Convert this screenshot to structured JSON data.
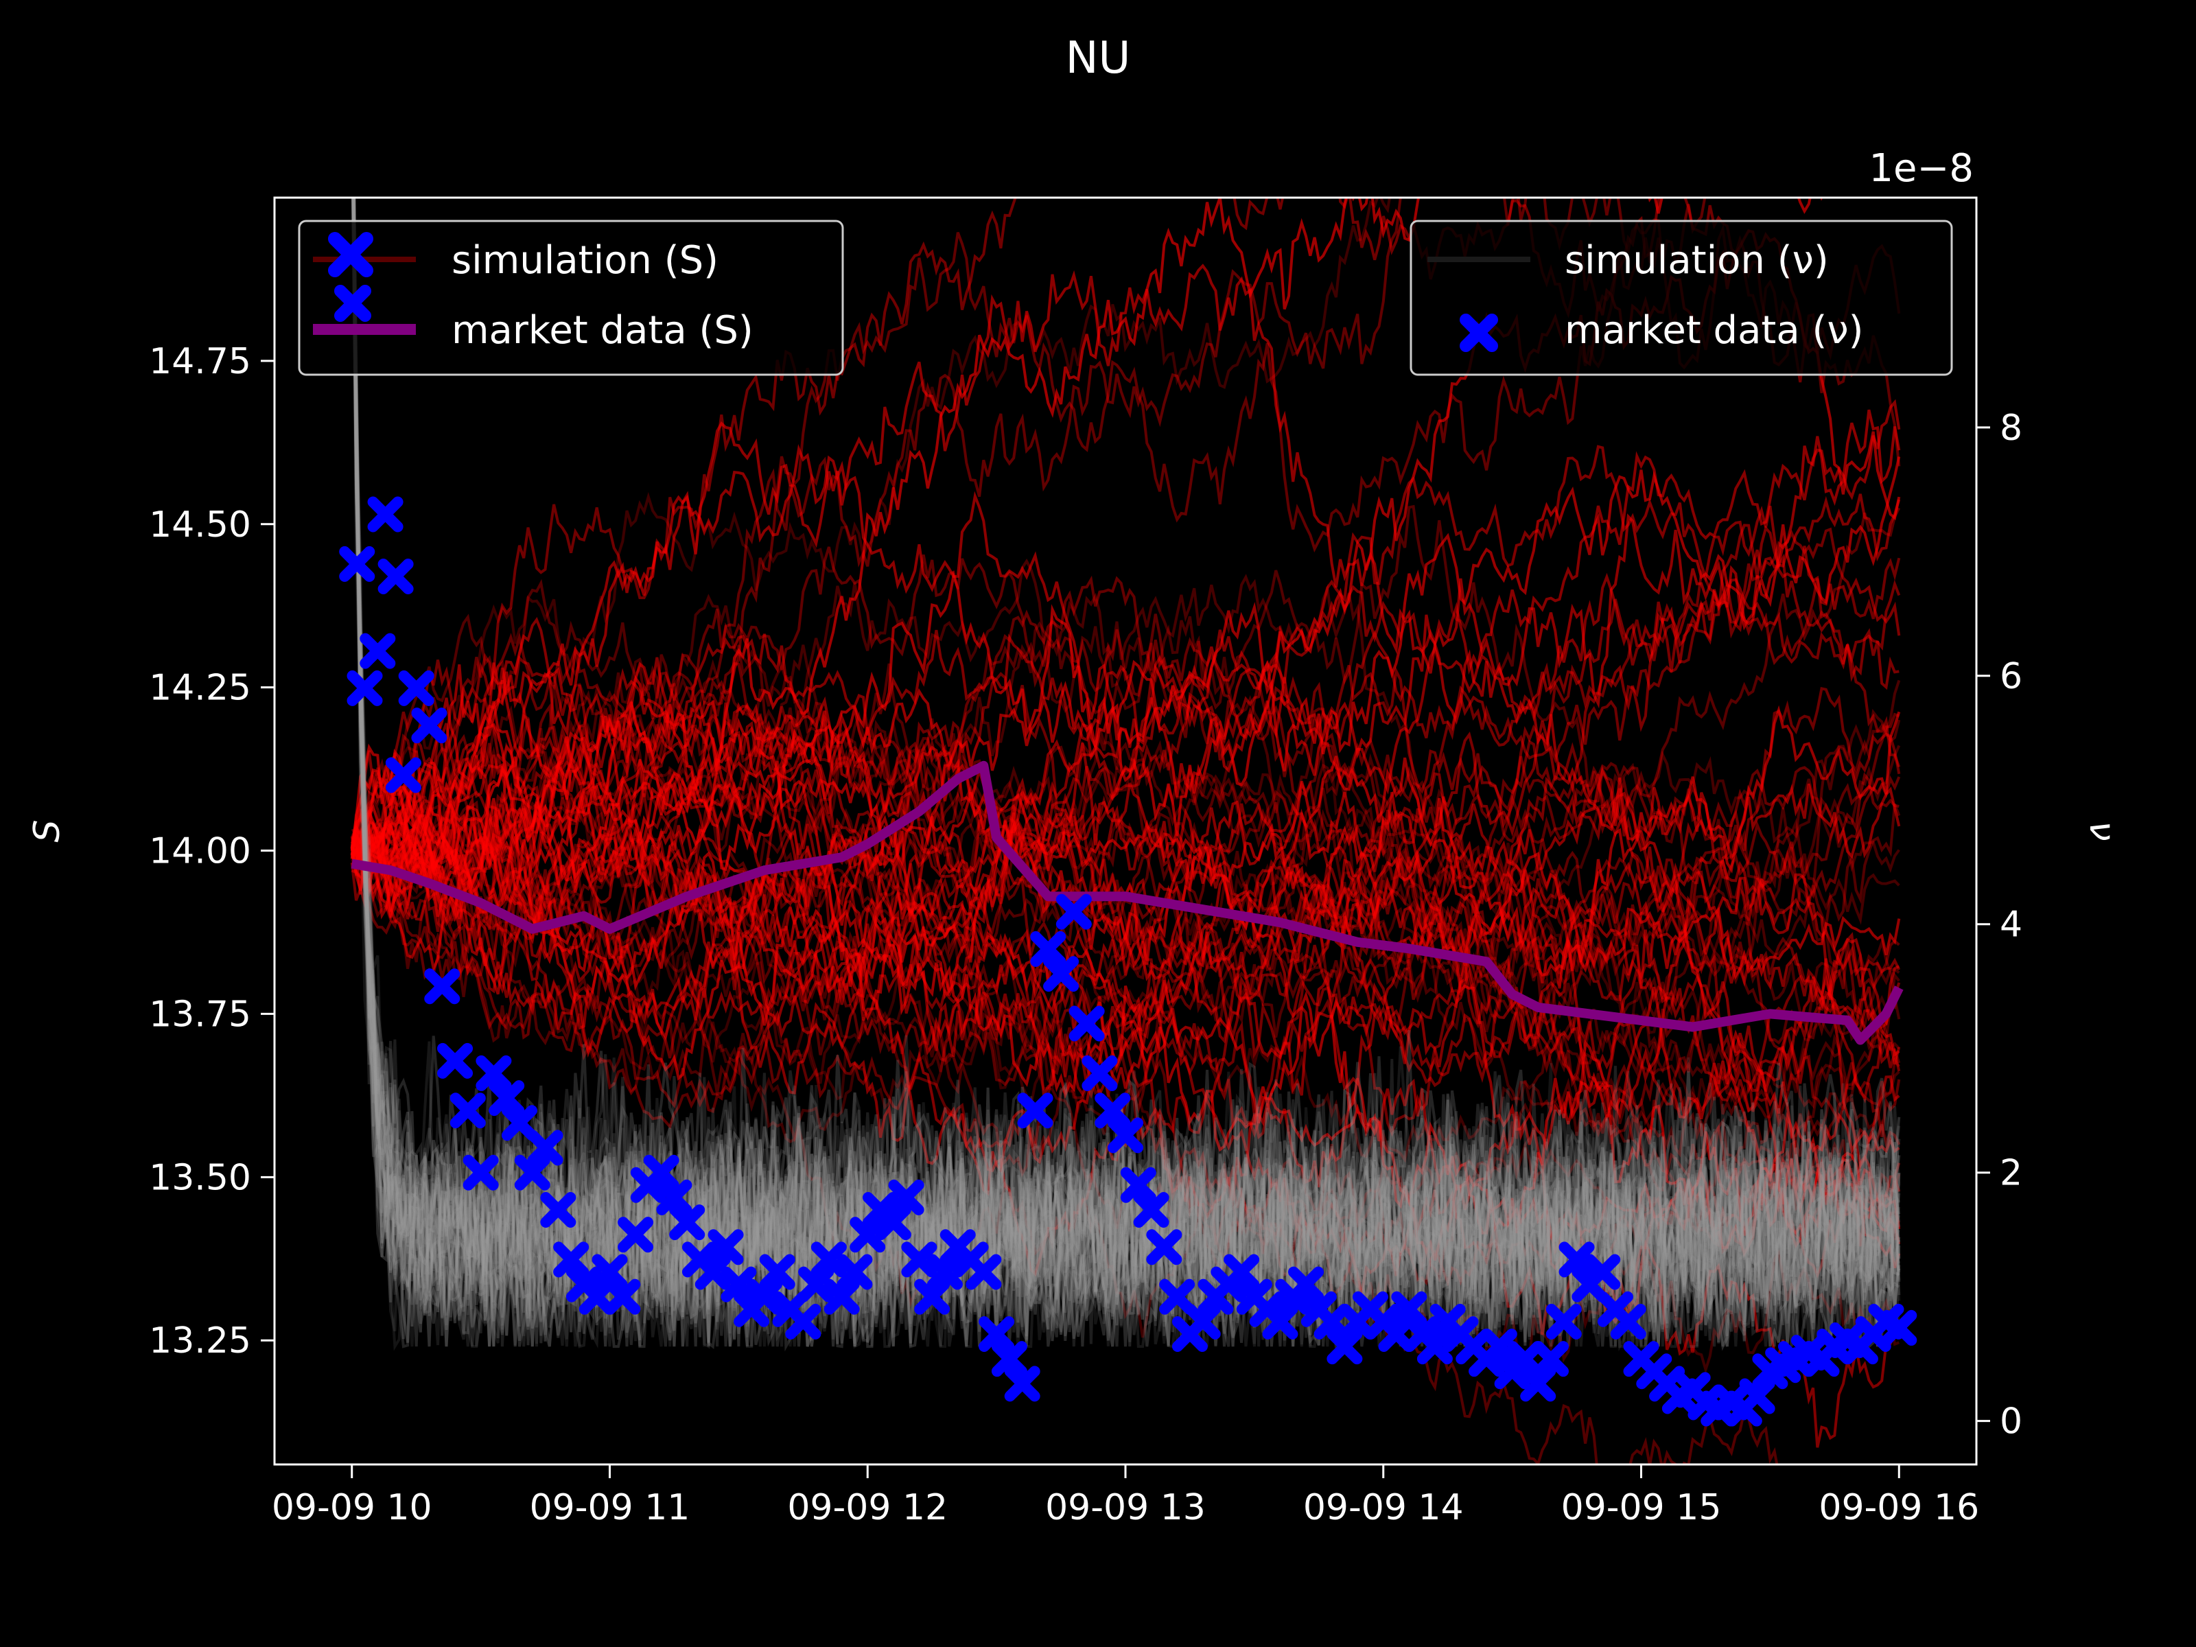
{
  "chart_data": {
    "type": "line",
    "title": "NU",
    "x_ticks": [
      "09-09 10",
      "09-09 11",
      "09-09 12",
      "09-09 13",
      "09-09 14",
      "09-09 15",
      "09-09 16"
    ],
    "x_range_hours": [
      9.7,
      16.3
    ],
    "left_axis": {
      "label": "S",
      "color": "#ff0000",
      "ticks": [
        "13.25",
        "13.50",
        "13.75",
        "14.00",
        "14.25",
        "14.50",
        "14.75"
      ],
      "tick_values": [
        13.25,
        13.5,
        13.75,
        14.0,
        14.25,
        14.5,
        14.75
      ],
      "range": [
        13.06,
        15.0
      ]
    },
    "right_axis": {
      "label": "ν",
      "color": "#808080",
      "offset_text": "1e−8",
      "ticks": [
        "0",
        "2",
        "4",
        "6",
        "8"
      ],
      "tick_values": [
        0,
        2,
        4,
        6,
        8
      ],
      "range": [
        -0.35,
        9.85
      ]
    },
    "legend_left": {
      "placement": "upper-left",
      "entries": [
        {
          "label": "simulation (S)",
          "color": "#8b0000"
        },
        {
          "label": "market data (S)",
          "color": "#800080"
        }
      ]
    },
    "legend_right": {
      "placement": "upper-right",
      "entries": [
        {
          "label": "simulation (ν)",
          "color": "#333333"
        },
        {
          "label": "market data (ν)",
          "color": "#0000ff"
        }
      ]
    },
    "series": [
      {
        "name": "market data (S)",
        "axis": "left",
        "color": "#800080",
        "x": [
          10.0,
          10.15,
          10.3,
          10.5,
          10.7,
          10.9,
          11.0,
          11.3,
          11.6,
          11.9,
          12.0,
          12.2,
          12.35,
          12.45,
          12.5,
          12.7,
          13.0,
          13.3,
          13.6,
          13.9,
          14.1,
          14.4,
          14.5,
          14.6,
          14.8,
          15.0,
          15.2,
          15.5,
          15.8,
          15.85,
          15.95,
          16.0
        ],
        "y": [
          13.98,
          13.97,
          13.95,
          13.92,
          13.88,
          13.9,
          13.88,
          13.93,
          13.97,
          13.99,
          14.01,
          14.06,
          14.11,
          14.13,
          14.02,
          13.93,
          13.93,
          13.91,
          13.89,
          13.86,
          13.85,
          13.83,
          13.78,
          13.76,
          13.75,
          13.74,
          13.73,
          13.75,
          13.74,
          13.71,
          13.75,
          13.79
        ]
      },
      {
        "name": "market data (ν)",
        "axis": "right",
        "color": "#0000ff",
        "x": [
          10.0,
          10.02,
          10.05,
          10.1,
          10.13,
          10.17,
          10.2,
          10.25,
          10.3,
          10.35,
          10.4,
          10.45,
          10.5,
          10.55,
          10.6,
          10.65,
          10.7,
          10.75,
          10.8,
          10.85,
          10.9,
          10.95,
          11.0,
          11.05,
          11.1,
          11.15,
          11.2,
          11.25,
          11.3,
          11.35,
          11.4,
          11.45,
          11.5,
          11.55,
          11.6,
          11.65,
          11.7,
          11.75,
          11.8,
          11.85,
          11.9,
          11.95,
          12.0,
          12.05,
          12.1,
          12.15,
          12.2,
          12.25,
          12.3,
          12.35,
          12.4,
          12.45,
          12.5,
          12.55,
          12.6,
          12.65,
          12.7,
          12.75,
          12.8,
          12.85,
          12.9,
          12.95,
          13.0,
          13.05,
          13.1,
          13.15,
          13.2,
          13.25,
          13.3,
          13.35,
          13.4,
          13.45,
          13.5,
          13.55,
          13.6,
          13.65,
          13.7,
          13.75,
          13.8,
          13.85,
          13.9,
          13.95,
          14.0,
          14.05,
          14.1,
          14.15,
          14.2,
          14.25,
          14.3,
          14.35,
          14.4,
          14.45,
          14.5,
          14.55,
          14.6,
          14.65,
          14.7,
          14.75,
          14.8,
          14.85,
          14.9,
          14.95,
          15.0,
          15.05,
          15.1,
          15.15,
          15.2,
          15.25,
          15.3,
          15.35,
          15.4,
          15.45,
          15.5,
          15.55,
          15.6,
          15.65,
          15.7,
          15.75,
          15.8,
          15.85,
          15.9,
          15.95,
          16.0
        ],
        "y": [
          9.4,
          6.9,
          5.9,
          6.2,
          7.3,
          6.8,
          5.2,
          5.9,
          5.6,
          3.5,
          2.9,
          2.5,
          2.0,
          2.8,
          2.6,
          2.4,
          2.0,
          2.2,
          1.7,
          1.3,
          1.1,
          1.0,
          1.2,
          1.0,
          1.5,
          1.9,
          2.0,
          1.8,
          1.6,
          1.3,
          1.2,
          1.4,
          1.1,
          0.9,
          1.0,
          1.2,
          0.9,
          0.8,
          1.1,
          1.3,
          1.0,
          1.2,
          1.5,
          1.7,
          1.6,
          1.8,
          1.3,
          1.0,
          1.2,
          1.4,
          1.3,
          1.2,
          0.7,
          0.5,
          0.3,
          2.5,
          3.8,
          3.6,
          4.1,
          3.2,
          2.8,
          2.5,
          2.3,
          1.9,
          1.7,
          1.4,
          1.0,
          0.7,
          0.8,
          1.0,
          1.1,
          1.2,
          1.0,
          0.9,
          0.8,
          1.0,
          1.1,
          0.9,
          0.8,
          0.6,
          0.8,
          0.9,
          0.8,
          0.7,
          0.9,
          0.7,
          0.6,
          0.8,
          0.7,
          0.6,
          0.5,
          0.6,
          0.4,
          0.5,
          0.3,
          0.5,
          0.8,
          1.3,
          1.1,
          1.2,
          0.9,
          0.8,
          0.5,
          0.4,
          0.3,
          0.2,
          0.25,
          0.15,
          0.1,
          0.15,
          0.1,
          0.2,
          0.4,
          0.45,
          0.5,
          0.55,
          0.5,
          0.6,
          0.65,
          0.6,
          0.7,
          0.8,
          0.75
        ]
      }
    ]
  }
}
